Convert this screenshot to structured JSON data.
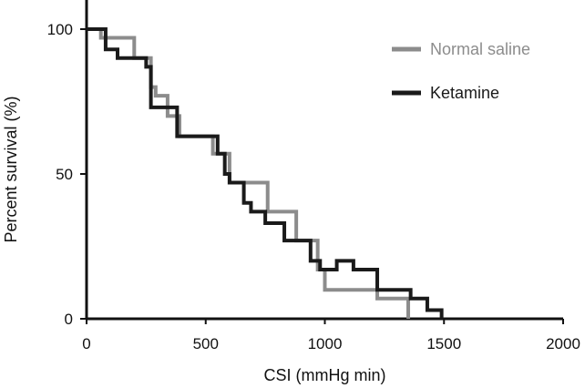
{
  "chart_data": {
    "type": "line",
    "style": "step",
    "title": "",
    "xlabel": "CSI (mmHg min)",
    "ylabel": "Percent survival (%)",
    "xlim": [
      0,
      2000
    ],
    "ylim": [
      0,
      100
    ],
    "xticks": [
      0,
      500,
      1000,
      1500,
      2000
    ],
    "yticks": [
      0,
      50,
      100
    ],
    "xtick_labels": [
      "0",
      "500",
      "1000",
      "1500",
      "2000"
    ],
    "ytick_labels": [
      "0",
      "50",
      "100"
    ],
    "grid": false,
    "legend_position": "top-right",
    "series": [
      {
        "name": "Normal saline",
        "color": "#8c8c8c",
        "x": [
          0,
          60,
          200,
          270,
          290,
          340,
          390,
          530,
          600,
          760,
          880,
          970,
          1000,
          1220,
          1350
        ],
        "y": [
          100,
          97,
          90,
          80,
          77,
          70,
          63,
          57,
          47,
          37,
          27,
          17,
          10,
          7,
          0
        ]
      },
      {
        "name": "Ketamine",
        "color": "#1a1a1a",
        "x": [
          0,
          80,
          130,
          250,
          270,
          380,
          550,
          580,
          600,
          660,
          690,
          750,
          830,
          940,
          980,
          1050,
          1120,
          1220,
          1360,
          1430,
          1490
        ],
        "y": [
          100,
          93,
          90,
          87,
          73,
          63,
          57,
          50,
          47,
          40,
          37,
          33,
          27,
          20,
          17,
          20,
          17,
          10,
          7,
          3,
          0
        ]
      }
    ]
  }
}
